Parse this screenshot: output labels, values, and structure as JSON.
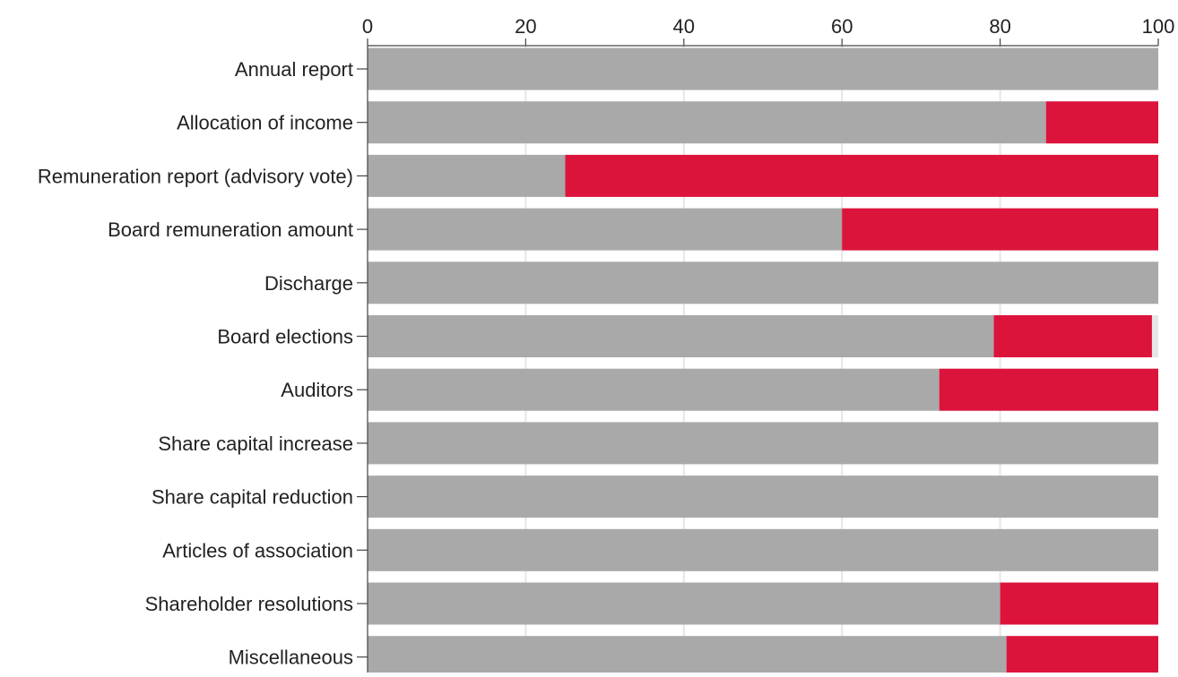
{
  "chart_data": {
    "type": "bar",
    "orientation": "horizontal",
    "stacked": true,
    "title": "",
    "xlabel": "",
    "ylabel": "",
    "xlim": [
      0,
      100
    ],
    "x_ticks": [
      "0",
      "20",
      "40",
      "60",
      "80",
      "100"
    ],
    "x_axis_position": "top",
    "grid": true,
    "legend": "none",
    "categories": [
      "Annual report",
      "Allocation of income",
      "Remuneration report (advisory vote)",
      "Board remuneration amount",
      "Discharge",
      "Board elections",
      "Auditors",
      "Share capital increase",
      "Share capital reduction",
      "Articles of association",
      "Shareholder resolutions",
      "Miscellaneous"
    ],
    "series": [
      {
        "color": "#a9a9a9",
        "values": [
          100,
          85.8,
          25,
          60,
          100,
          79.2,
          72.3,
          100,
          100,
          100,
          80,
          80.8
        ]
      },
      {
        "color": "#dc143c",
        "values": [
          0,
          14.2,
          75,
          40,
          0,
          20,
          27.7,
          0,
          0,
          0,
          20,
          19.2
        ]
      },
      {
        "color": "#e6e6e6",
        "values": [
          0,
          0,
          0,
          0,
          0,
          0.8,
          0,
          0,
          0,
          0,
          0,
          0
        ]
      }
    ]
  }
}
